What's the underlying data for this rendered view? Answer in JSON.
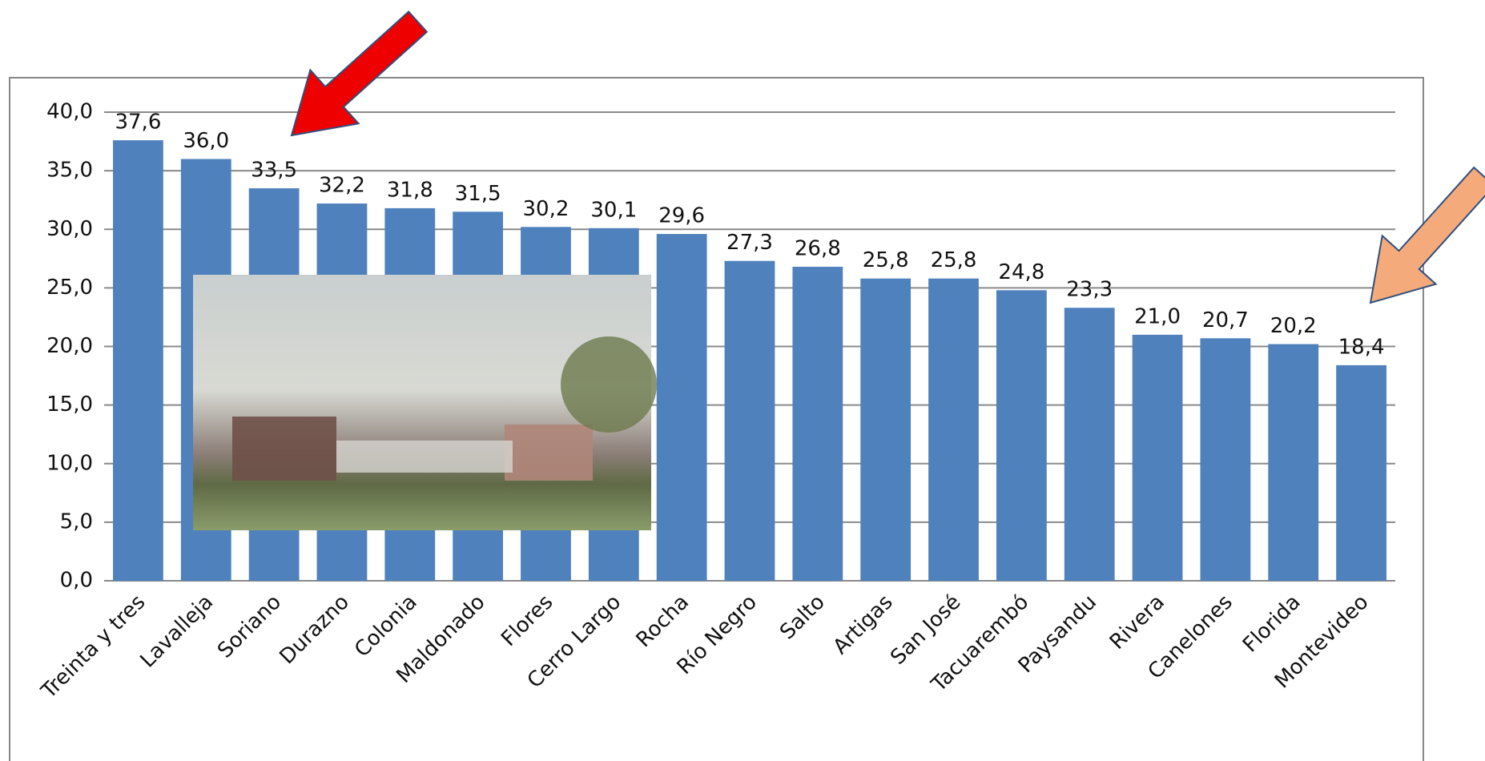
{
  "chart_data": {
    "type": "bar",
    "categories": [
      "Treinta y tres",
      "Lavalleja",
      "Soriano",
      "Durazno",
      "Colonia",
      "Maldonado",
      "Flores",
      "Cerro Largo",
      "Rocha",
      "Río Negro",
      "Salto",
      "Artigas",
      "San José",
      "Tacuarembó",
      "Paysandu",
      "Rivera",
      "Canelones",
      "Florida",
      "Montevideo"
    ],
    "values": [
      37.6,
      36.0,
      33.5,
      32.2,
      31.8,
      31.5,
      30.2,
      30.1,
      29.6,
      27.3,
      26.8,
      25.8,
      25.8,
      24.8,
      23.3,
      21.0,
      20.7,
      20.2,
      18.4
    ],
    "value_labels": [
      "37,6",
      "36,0",
      "33,5",
      "32,2",
      "31,8",
      "31,5",
      "30,2",
      "30,1",
      "29,6",
      "27,3",
      "26,8",
      "25,8",
      "25,8",
      "24,8",
      "23,3",
      "21,0",
      "20,7",
      "20,2",
      "18,4"
    ],
    "color": "#4f81bd",
    "ylim": [
      0,
      40
    ],
    "yticks": [
      {
        "value": 0,
        "label": "0,0"
      },
      {
        "value": 5,
        "label": "5,0"
      },
      {
        "value": 10,
        "label": "10,0"
      },
      {
        "value": 15,
        "label": "15,0"
      },
      {
        "value": 20,
        "label": "20,0"
      },
      {
        "value": 25,
        "label": "25,0"
      },
      {
        "value": 30,
        "label": "30,0"
      },
      {
        "value": 35,
        "label": "35,0"
      },
      {
        "value": 40,
        "label": "40,0"
      }
    ],
    "grid": true
  }
}
